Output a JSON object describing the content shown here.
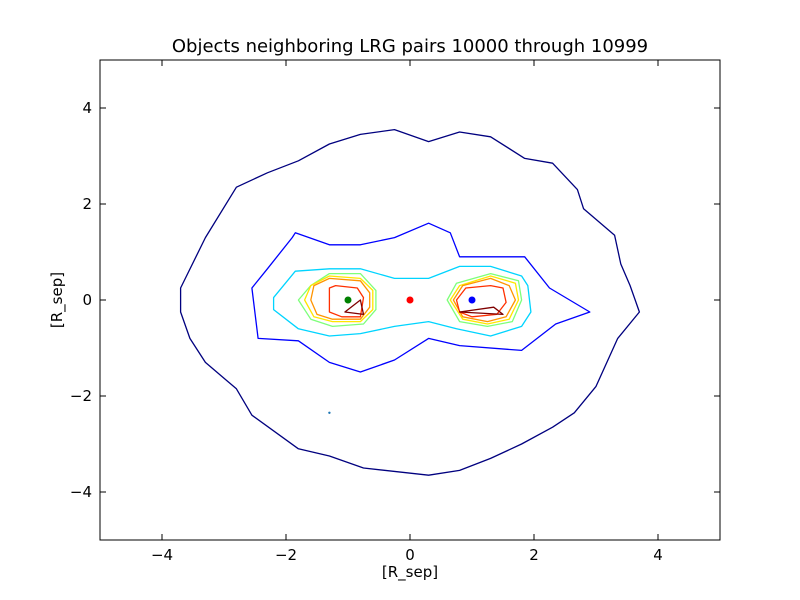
{
  "chart_data": {
    "type": "contour",
    "title": "Objects neighboring LRG pairs 10000 through 10999",
    "xlabel": "[R_sep]",
    "ylabel": "[R_sep]",
    "xlim": [
      -5,
      5
    ],
    "ylim": [
      -5,
      5
    ],
    "xticks": [
      -4,
      -2,
      0,
      2,
      4
    ],
    "yticks": [
      -4,
      -2,
      0,
      2,
      4
    ],
    "xtick_labels": [
      "−4",
      "−2",
      "0",
      "2",
      "4"
    ],
    "ytick_labels": [
      "−4",
      "−2",
      "0",
      "2",
      "4"
    ],
    "grid": false,
    "contours": [
      {
        "color": "#00007f",
        "closed": true,
        "points": [
          [
            -3.7,
            -0.25
          ],
          [
            -3.55,
            -0.8
          ],
          [
            -3.3,
            -1.3
          ],
          [
            -2.8,
            -1.85
          ],
          [
            -2.55,
            -2.4
          ],
          [
            -1.8,
            -3.1
          ],
          [
            -1.3,
            -3.25
          ],
          [
            -0.75,
            -3.5
          ],
          [
            0.3,
            -3.65
          ],
          [
            0.8,
            -3.55
          ],
          [
            1.3,
            -3.3
          ],
          [
            1.8,
            -3.0
          ],
          [
            2.3,
            -2.65
          ],
          [
            2.65,
            -2.35
          ],
          [
            3.0,
            -1.8
          ],
          [
            3.35,
            -0.8
          ],
          [
            3.7,
            -0.25
          ],
          [
            3.55,
            0.3
          ],
          [
            3.4,
            0.75
          ],
          [
            3.3,
            1.35
          ],
          [
            2.8,
            1.9
          ],
          [
            2.7,
            2.3
          ],
          [
            2.3,
            2.85
          ],
          [
            1.85,
            2.95
          ],
          [
            1.3,
            3.4
          ],
          [
            0.8,
            3.5
          ],
          [
            0.3,
            3.3
          ],
          [
            -0.25,
            3.55
          ],
          [
            -0.8,
            3.45
          ],
          [
            -1.3,
            3.25
          ],
          [
            -1.8,
            2.9
          ],
          [
            -2.3,
            2.65
          ],
          [
            -2.8,
            2.35
          ],
          [
            -3.3,
            1.3
          ],
          [
            -3.7,
            0.25
          ]
        ]
      },
      {
        "color": "#0000ff",
        "closed": true,
        "points": [
          [
            -2.55,
            0.25
          ],
          [
            -2.45,
            -0.8
          ],
          [
            -1.8,
            -0.85
          ],
          [
            -1.3,
            -1.3
          ],
          [
            -0.8,
            -1.5
          ],
          [
            -0.25,
            -1.25
          ],
          [
            0.3,
            -0.8
          ],
          [
            0.8,
            -0.95
          ],
          [
            1.8,
            -1.05
          ],
          [
            2.35,
            -0.5
          ],
          [
            2.9,
            -0.25
          ],
          [
            2.25,
            0.25
          ],
          [
            1.85,
            0.9
          ],
          [
            0.8,
            0.9
          ],
          [
            0.65,
            1.4
          ],
          [
            0.3,
            1.6
          ],
          [
            -0.25,
            1.3
          ],
          [
            -0.8,
            1.15
          ],
          [
            -1.3,
            1.15
          ],
          [
            -1.85,
            1.4
          ],
          [
            -1.9,
            1.3
          ],
          [
            -2.3,
            0.65
          ]
        ]
      },
      {
        "color": "#00d4ff",
        "closed": true,
        "points": [
          [
            -2.2,
            0.05
          ],
          [
            -2.2,
            -0.2
          ],
          [
            -1.8,
            -0.6
          ],
          [
            -1.3,
            -0.75
          ],
          [
            -0.8,
            -0.7
          ],
          [
            -0.25,
            -0.55
          ],
          [
            0.3,
            -0.45
          ],
          [
            0.75,
            -0.6
          ],
          [
            1.3,
            -0.75
          ],
          [
            1.8,
            -0.55
          ],
          [
            1.95,
            -0.25
          ],
          [
            1.9,
            0.3
          ],
          [
            1.8,
            0.5
          ],
          [
            1.3,
            0.7
          ],
          [
            0.8,
            0.7
          ],
          [
            0.3,
            0.45
          ],
          [
            -0.25,
            0.45
          ],
          [
            -0.8,
            0.65
          ],
          [
            -1.3,
            0.65
          ],
          [
            -1.85,
            0.6
          ]
        ]
      },
      {
        "color": "#7dff7a",
        "closed": true,
        "points": [
          [
            -1.6,
            0.3
          ],
          [
            -1.8,
            0.0
          ],
          [
            -1.6,
            -0.4
          ],
          [
            -1.25,
            -0.55
          ],
          [
            -0.75,
            -0.5
          ],
          [
            -0.55,
            -0.2
          ],
          [
            -0.55,
            0.2
          ],
          [
            -0.8,
            0.55
          ],
          [
            -1.3,
            0.55
          ]
        ],
        "points_b": [
          [
            0.6,
            0.0
          ],
          [
            0.75,
            0.35
          ],
          [
            1.3,
            0.55
          ],
          [
            1.75,
            0.4
          ],
          [
            1.8,
            0.0
          ],
          [
            1.65,
            -0.45
          ],
          [
            1.25,
            -0.55
          ],
          [
            0.8,
            -0.45
          ]
        ]
      },
      {
        "color": "#ffe600",
        "closed": true,
        "points": [
          [
            -1.6,
            0.3
          ],
          [
            -1.7,
            0.0
          ],
          [
            -1.55,
            -0.35
          ],
          [
            -1.25,
            -0.45
          ],
          [
            -0.8,
            -0.45
          ],
          [
            -0.6,
            -0.2
          ],
          [
            -0.6,
            0.2
          ],
          [
            -0.8,
            0.45
          ],
          [
            -1.3,
            0.5
          ]
        ],
        "points_b": [
          [
            0.65,
            0.0
          ],
          [
            0.8,
            0.3
          ],
          [
            1.3,
            0.5
          ],
          [
            1.7,
            0.35
          ],
          [
            1.75,
            0.0
          ],
          [
            1.6,
            -0.4
          ],
          [
            1.25,
            -0.5
          ],
          [
            0.85,
            -0.4
          ]
        ]
      },
      {
        "color": "#ff9400",
        "closed": true,
        "points": [
          [
            -1.55,
            0.3
          ],
          [
            -1.6,
            0.0
          ],
          [
            -1.5,
            -0.3
          ],
          [
            -1.25,
            -0.4
          ],
          [
            -0.8,
            -0.4
          ],
          [
            -0.65,
            -0.15
          ],
          [
            -0.65,
            0.15
          ],
          [
            -0.8,
            0.4
          ],
          [
            -1.3,
            0.45
          ]
        ],
        "points_b": [
          [
            0.7,
            0.0
          ],
          [
            0.85,
            0.3
          ],
          [
            1.3,
            0.45
          ],
          [
            1.6,
            0.3
          ],
          [
            1.7,
            0.0
          ],
          [
            1.55,
            -0.35
          ],
          [
            1.25,
            -0.45
          ],
          [
            0.85,
            -0.35
          ]
        ]
      },
      {
        "color": "#ff3000",
        "closed": true,
        "points": [
          [
            -1.3,
            0.25
          ],
          [
            -1.3,
            -0.25
          ],
          [
            -1.1,
            -0.35
          ],
          [
            -0.8,
            -0.35
          ],
          [
            -0.75,
            0.05
          ],
          [
            -0.85,
            0.25
          ],
          [
            -1.2,
            0.3
          ]
        ],
        "points_b": [
          [
            0.75,
            0.0
          ],
          [
            0.9,
            0.25
          ],
          [
            1.3,
            0.3
          ],
          [
            1.5,
            0.25
          ],
          [
            1.55,
            -0.05
          ],
          [
            1.4,
            -0.3
          ],
          [
            1.0,
            -0.35
          ],
          [
            0.8,
            -0.25
          ]
        ]
      },
      {
        "color": "#7f0000",
        "closed": true,
        "points": [
          [
            -1.05,
            -0.25
          ],
          [
            -0.8,
            0.0
          ],
          [
            -0.75,
            -0.3
          ]
        ],
        "points_b": [
          [
            0.8,
            -0.25
          ],
          [
            1.35,
            -0.15
          ],
          [
            1.5,
            -0.3
          ]
        ]
      }
    ],
    "points": [
      {
        "x": -1.0,
        "y": 0.0,
        "color": "#008000"
      },
      {
        "x": 0.0,
        "y": 0.0,
        "color": "#ff0000"
      },
      {
        "x": 1.0,
        "y": 0.0,
        "color": "#0000ff"
      },
      {
        "x": -1.3,
        "y": -2.35,
        "color": "#1f77b4",
        "small": true
      }
    ]
  }
}
